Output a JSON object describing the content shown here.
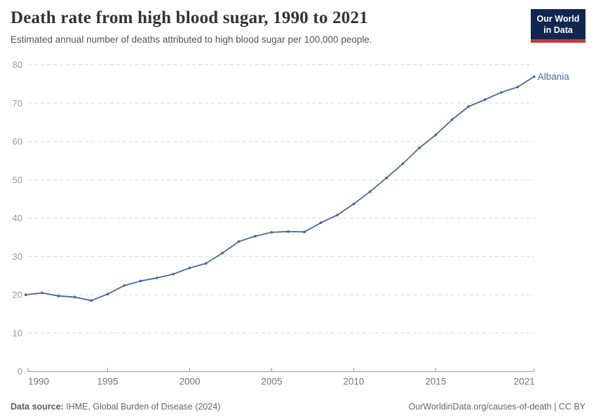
{
  "header": {
    "title": "Death rate from high blood sugar, 1990 to 2021",
    "subtitle": "Estimated annual number of deaths attributed to high blood sugar per 100,000 people.",
    "logo": {
      "line1": "Our World",
      "line2": "in Data",
      "bg_color": "#12274E",
      "stripe_color": "#C63836"
    }
  },
  "chart_data": {
    "type": "line",
    "title": "Death rate from high blood sugar, 1990 to 2021",
    "xlabel": "",
    "ylabel": "",
    "xlim": [
      1990,
      2021
    ],
    "ylim": [
      0,
      80
    ],
    "x_ticks": [
      1990,
      1995,
      2000,
      2005,
      2010,
      2015,
      2021
    ],
    "y_ticks": [
      0,
      10,
      20,
      30,
      40,
      50,
      60,
      70,
      80
    ],
    "grid": "horizontal-dashed",
    "legend_position": "end-of-line-label",
    "line_color": "#4C6A9C",
    "grid_color": "#dcdcdc",
    "axis_color": "#8f8f8f",
    "y_label_color": "#9a9a9a",
    "x_label_color": "#757575",
    "series": [
      {
        "name": "Albania",
        "x": [
          1990,
          1991,
          1992,
          1993,
          1994,
          1995,
          1996,
          1997,
          1998,
          1999,
          2000,
          2001,
          2002,
          2003,
          2004,
          2005,
          2006,
          2007,
          2008,
          2009,
          2010,
          2011,
          2012,
          2013,
          2014,
          2015,
          2016,
          2017,
          2018,
          2019,
          2020,
          2021
        ],
        "values": [
          20.0,
          20.5,
          19.7,
          19.4,
          18.5,
          20.2,
          22.4,
          23.6,
          24.4,
          25.4,
          27.0,
          28.2,
          30.9,
          33.9,
          35.3,
          36.3,
          36.5,
          36.4,
          38.8,
          40.8,
          43.7,
          46.9,
          50.5,
          54.2,
          58.3,
          61.7,
          65.7,
          69.1,
          70.9,
          72.8,
          74.2,
          76.9
        ]
      }
    ]
  },
  "footer": {
    "source_label": "Data source:",
    "source_text": " IHME, Global Burden of Disease (2024)",
    "credit": "OurWorldinData.org/causes-of-death | CC BY"
  }
}
